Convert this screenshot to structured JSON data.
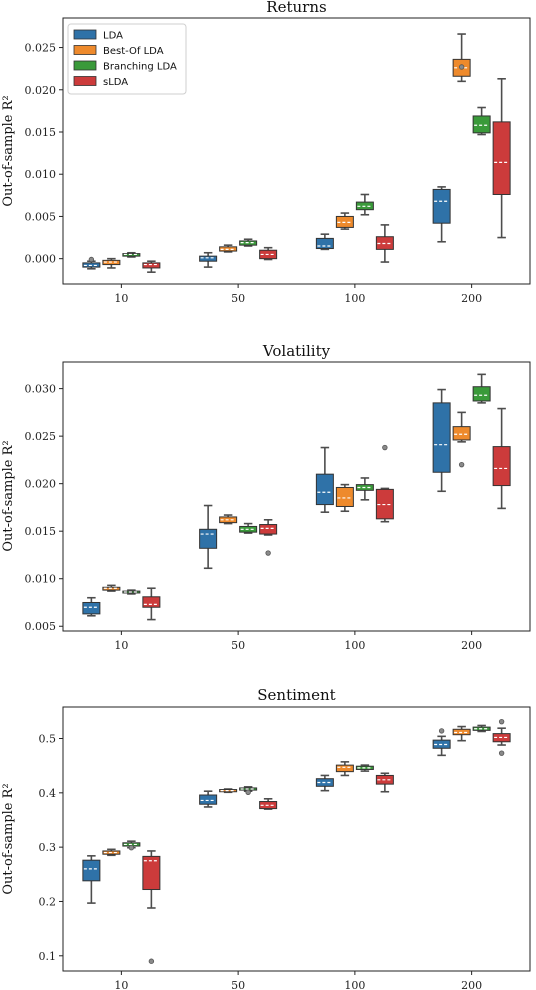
{
  "legend": {
    "placement": "top-left",
    "entries": [
      "LDA",
      "Best-Of LDA",
      "Branching LDA",
      "sLDA"
    ],
    "colors": [
      "#2f72a8",
      "#ee8a2c",
      "#3a9a3a",
      "#cc3b3b"
    ]
  },
  "chart_data": [
    {
      "type": "box",
      "title": "Returns",
      "ylabel": "Out-of-sample R²",
      "categories": [
        "10",
        "50",
        "100",
        "200"
      ],
      "ylim": [
        -0.003,
        0.0285
      ],
      "yticks": [
        "0.000",
        "0.005",
        "0.010",
        "0.015",
        "0.020",
        "0.025"
      ],
      "ytick_values": [
        0,
        0.005,
        0.01,
        0.015,
        0.02,
        0.025
      ],
      "series": [
        {
          "name": "LDA",
          "boxes": [
            {
              "whislo": -0.0012,
              "q1": -0.001,
              "med": -0.0008,
              "q3": -0.0005,
              "whishi": -0.0003,
              "fliers": [
                -0.0001
              ]
            },
            {
              "whislo": -0.001,
              "q1": -0.0003,
              "med": 0.0001,
              "q3": 0.0003,
              "whishi": 0.0007,
              "fliers": []
            },
            {
              "whislo": 0.0011,
              "q1": 0.0012,
              "med": 0.0015,
              "q3": 0.0024,
              "whishi": 0.0029,
              "fliers": []
            },
            {
              "whislo": 0.002,
              "q1": 0.0042,
              "med": 0.0068,
              "q3": 0.0082,
              "whishi": 0.0085,
              "fliers": []
            }
          ]
        },
        {
          "name": "Best-Of LDA",
          "boxes": [
            {
              "whislo": -0.0011,
              "q1": -0.0007,
              "med": -0.0004,
              "q3": -0.0002,
              "whishi": 0.0,
              "fliers": []
            },
            {
              "whislo": 0.0008,
              "q1": 0.0009,
              "med": 0.0011,
              "q3": 0.0014,
              "whishi": 0.0016,
              "fliers": []
            },
            {
              "whislo": 0.0035,
              "q1": 0.0037,
              "med": 0.0043,
              "q3": 0.005,
              "whishi": 0.0054,
              "fliers": []
            },
            {
              "whislo": 0.021,
              "q1": 0.0216,
              "med": 0.0226,
              "q3": 0.0236,
              "whishi": 0.0266,
              "fliers": [
                0.0227
              ]
            }
          ]
        },
        {
          "name": "Branching LDA",
          "boxes": [
            {
              "whislo": 0.0002,
              "q1": 0.0003,
              "med": 0.0005,
              "q3": 0.0006,
              "whishi": 0.0007,
              "fliers": []
            },
            {
              "whislo": 0.0015,
              "q1": 0.0016,
              "med": 0.0019,
              "q3": 0.0021,
              "whishi": 0.0023,
              "fliers": []
            },
            {
              "whislo": 0.0052,
              "q1": 0.0058,
              "med": 0.0062,
              "q3": 0.0067,
              "whishi": 0.0076,
              "fliers": []
            },
            {
              "whislo": 0.0147,
              "q1": 0.0149,
              "med": 0.0158,
              "q3": 0.0169,
              "whishi": 0.0179,
              "fliers": []
            }
          ]
        },
        {
          "name": "sLDA",
          "boxes": [
            {
              "whislo": -0.0016,
              "q1": -0.0011,
              "med": -0.0007,
              "q3": -0.0005,
              "whishi": -0.0003,
              "fliers": []
            },
            {
              "whislo": -0.0001,
              "q1": 0.0,
              "med": 0.0005,
              "q3": 0.001,
              "whishi": 0.0013,
              "fliers": []
            },
            {
              "whislo": -0.0004,
              "q1": 0.0011,
              "med": 0.0018,
              "q3": 0.0026,
              "whishi": 0.004,
              "fliers": []
            },
            {
              "whislo": 0.0025,
              "q1": 0.0076,
              "med": 0.0114,
              "q3": 0.0162,
              "whishi": 0.0213,
              "fliers": []
            }
          ]
        }
      ]
    },
    {
      "type": "box",
      "title": "Volatility",
      "ylabel": "Out-of-sample R²",
      "categories": [
        "10",
        "50",
        "100",
        "200"
      ],
      "ylim": [
        0.0045,
        0.0328
      ],
      "yticks": [
        "0.005",
        "0.010",
        "0.015",
        "0.020",
        "0.025",
        "0.030"
      ],
      "ytick_values": [
        0.005,
        0.01,
        0.015,
        0.02,
        0.025,
        0.03
      ],
      "series": [
        {
          "name": "LDA",
          "boxes": [
            {
              "whislo": 0.0061,
              "q1": 0.0063,
              "med": 0.007,
              "q3": 0.0075,
              "whishi": 0.008,
              "fliers": []
            },
            {
              "whislo": 0.0111,
              "q1": 0.0132,
              "med": 0.0147,
              "q3": 0.0152,
              "whishi": 0.0177,
              "fliers": []
            },
            {
              "whislo": 0.017,
              "q1": 0.0178,
              "med": 0.0191,
              "q3": 0.021,
              "whishi": 0.0238,
              "fliers": []
            },
            {
              "whislo": 0.0192,
              "q1": 0.0212,
              "med": 0.0241,
              "q3": 0.0285,
              "whishi": 0.0299,
              "fliers": []
            }
          ]
        },
        {
          "name": "Best-Of LDA",
          "boxes": [
            {
              "whislo": 0.0087,
              "q1": 0.0088,
              "med": 0.009,
              "q3": 0.0091,
              "whishi": 0.0093,
              "fliers": []
            },
            {
              "whislo": 0.0158,
              "q1": 0.0159,
              "med": 0.0162,
              "q3": 0.0165,
              "whishi": 0.0167,
              "fliers": []
            },
            {
              "whislo": 0.0171,
              "q1": 0.0176,
              "med": 0.0185,
              "q3": 0.0196,
              "whishi": 0.0199,
              "fliers": []
            },
            {
              "whislo": 0.0244,
              "q1": 0.0246,
              "med": 0.0252,
              "q3": 0.026,
              "whishi": 0.0275,
              "fliers": [
                0.022
              ]
            }
          ]
        },
        {
          "name": "Branching LDA",
          "boxes": [
            {
              "whislo": 0.0084,
              "q1": 0.0085,
              "med": 0.0086,
              "q3": 0.0087,
              "whishi": 0.0088,
              "fliers": []
            },
            {
              "whislo": 0.0148,
              "q1": 0.0149,
              "med": 0.0152,
              "q3": 0.0155,
              "whishi": 0.0158,
              "fliers": []
            },
            {
              "whislo": 0.0183,
              "q1": 0.0193,
              "med": 0.0196,
              "q3": 0.0199,
              "whishi": 0.0206,
              "fliers": []
            },
            {
              "whislo": 0.0285,
              "q1": 0.0287,
              "med": 0.0293,
              "q3": 0.0302,
              "whishi": 0.0315,
              "fliers": []
            }
          ]
        },
        {
          "name": "sLDA",
          "boxes": [
            {
              "whislo": 0.0057,
              "q1": 0.007,
              "med": 0.0073,
              "q3": 0.0081,
              "whishi": 0.009,
              "fliers": []
            },
            {
              "whislo": 0.0146,
              "q1": 0.0147,
              "med": 0.0153,
              "q3": 0.0157,
              "whishi": 0.0162,
              "fliers": [
                0.0127
              ]
            },
            {
              "whislo": 0.016,
              "q1": 0.0163,
              "med": 0.0178,
              "q3": 0.0194,
              "whishi": 0.0195,
              "fliers": [
                0.0238
              ]
            },
            {
              "whislo": 0.0174,
              "q1": 0.0198,
              "med": 0.0216,
              "q3": 0.0239,
              "whishi": 0.0279,
              "fliers": []
            }
          ]
        }
      ]
    },
    {
      "type": "box",
      "title": "Sentiment",
      "ylabel": "Out-of-sample R²",
      "categories": [
        "10",
        "50",
        "100",
        "200"
      ],
      "ylim": [
        0.072,
        0.558
      ],
      "yticks": [
        "0.1",
        "0.2",
        "0.3",
        "0.4",
        "0.5"
      ],
      "ytick_values": [
        0.1,
        0.2,
        0.3,
        0.4,
        0.5
      ],
      "series": [
        {
          "name": "LDA",
          "boxes": [
            {
              "whislo": 0.197,
              "q1": 0.238,
              "med": 0.26,
              "q3": 0.276,
              "whishi": 0.284,
              "fliers": []
            },
            {
              "whislo": 0.374,
              "q1": 0.379,
              "med": 0.386,
              "q3": 0.396,
              "whishi": 0.403,
              "fliers": []
            },
            {
              "whislo": 0.404,
              "q1": 0.412,
              "med": 0.419,
              "q3": 0.426,
              "whishi": 0.432,
              "fliers": []
            },
            {
              "whislo": 0.469,
              "q1": 0.482,
              "med": 0.489,
              "q3": 0.497,
              "whishi": 0.504,
              "fliers": [
                0.514
              ]
            }
          ]
        },
        {
          "name": "Best-Of LDA",
          "boxes": [
            {
              "whislo": 0.285,
              "q1": 0.287,
              "med": 0.29,
              "q3": 0.293,
              "whishi": 0.296,
              "fliers": []
            },
            {
              "whislo": 0.401,
              "q1": 0.402,
              "med": 0.404,
              "q3": 0.406,
              "whishi": 0.407,
              "fliers": []
            },
            {
              "whislo": 0.432,
              "q1": 0.439,
              "med": 0.447,
              "q3": 0.451,
              "whishi": 0.457,
              "fliers": []
            },
            {
              "whislo": 0.496,
              "q1": 0.507,
              "med": 0.511,
              "q3": 0.517,
              "whishi": 0.522,
              "fliers": []
            }
          ]
        },
        {
          "name": "Branching LDA",
          "boxes": [
            {
              "whislo": 0.299,
              "q1": 0.302,
              "med": 0.305,
              "q3": 0.308,
              "whishi": 0.311,
              "fliers": [
                0.299
              ]
            },
            {
              "whislo": 0.403,
              "q1": 0.405,
              "med": 0.407,
              "q3": 0.409,
              "whishi": 0.411,
              "fliers": [
                0.401
              ]
            },
            {
              "whislo": 0.44,
              "q1": 0.443,
              "med": 0.446,
              "q3": 0.449,
              "whishi": 0.451,
              "fliers": []
            },
            {
              "whislo": 0.513,
              "q1": 0.515,
              "med": 0.518,
              "q3": 0.521,
              "whishi": 0.524,
              "fliers": []
            }
          ]
        },
        {
          "name": "sLDA",
          "boxes": [
            {
              "whislo": 0.188,
              "q1": 0.222,
              "med": 0.275,
              "q3": 0.283,
              "whishi": 0.293,
              "fliers": [
                0.09
              ]
            },
            {
              "whislo": 0.37,
              "q1": 0.371,
              "med": 0.377,
              "q3": 0.384,
              "whishi": 0.389,
              "fliers": []
            },
            {
              "whislo": 0.402,
              "q1": 0.416,
              "med": 0.424,
              "q3": 0.432,
              "whishi": 0.436,
              "fliers": []
            },
            {
              "whislo": 0.488,
              "q1": 0.494,
              "med": 0.502,
              "q3": 0.509,
              "whishi": 0.519,
              "fliers": [
                0.473,
                0.531
              ]
            }
          ]
        }
      ]
    }
  ]
}
